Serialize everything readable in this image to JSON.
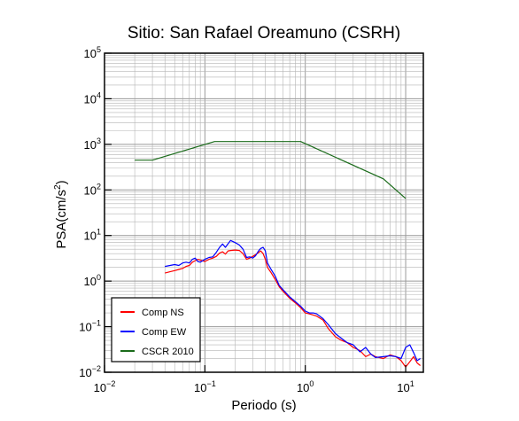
{
  "chart_data": {
    "type": "line",
    "title": "Sitio: San Rafael Oreamuno (CSRH)",
    "xlabel": "Periodo (s)",
    "ylabel": {
      "base": "PSA(cm/s",
      "sup": "2",
      "end": ")"
    },
    "x_scale": "log",
    "y_scale": "log",
    "xlim": [
      0.01,
      15
    ],
    "ylim": [
      0.01,
      100000
    ],
    "grid": true,
    "legend_position": "bottom-left",
    "x_ticks": [
      {
        "base": "10",
        "exp": "−2",
        "value": 0.01
      },
      {
        "base": "10",
        "exp": "−1",
        "value": 0.1
      },
      {
        "base": "10",
        "exp": "0",
        "value": 1
      },
      {
        "base": "10",
        "exp": "1",
        "value": 10
      }
    ],
    "y_ticks": [
      {
        "base": "10",
        "exp": "−2",
        "value": 0.01
      },
      {
        "base": "10",
        "exp": "−1",
        "value": 0.1
      },
      {
        "base": "10",
        "exp": "0",
        "value": 1
      },
      {
        "base": "10",
        "exp": "1",
        "value": 10
      },
      {
        "base": "10",
        "exp": "2",
        "value": 100
      },
      {
        "base": "10",
        "exp": "3",
        "value": 1000
      },
      {
        "base": "10",
        "exp": "4",
        "value": 10000
      },
      {
        "base": "10",
        "exp": "5",
        "value": 100000
      }
    ],
    "series": [
      {
        "name": "Comp NS",
        "color": "#ff0000",
        "x": [
          0.04,
          0.045,
          0.05,
          0.055,
          0.06,
          0.065,
          0.07,
          0.075,
          0.08,
          0.085,
          0.09,
          0.1,
          0.11,
          0.12,
          0.13,
          0.14,
          0.15,
          0.16,
          0.17,
          0.18,
          0.2,
          0.22,
          0.24,
          0.26,
          0.28,
          0.3,
          0.32,
          0.34,
          0.36,
          0.38,
          0.4,
          0.42,
          0.45,
          0.5,
          0.55,
          0.6,
          0.7,
          0.8,
          0.9,
          1.0,
          1.1,
          1.2,
          1.3,
          1.5,
          1.7,
          2.0,
          2.3,
          2.6,
          3.0,
          3.5,
          4.0,
          4.5,
          5.0,
          6.0,
          7.0,
          8.0,
          9.0,
          10.0,
          11.0,
          12.0,
          13.0,
          14.0
        ],
        "y": [
          1.5,
          1.6,
          1.7,
          1.8,
          1.9,
          2.1,
          2.2,
          2.6,
          2.8,
          3.0,
          2.9,
          2.7,
          3.0,
          3.2,
          3.5,
          4.1,
          4.4,
          3.9,
          4.6,
          4.7,
          4.8,
          4.7,
          4.0,
          3.0,
          3.2,
          3.5,
          3.8,
          4.2,
          4.6,
          4.0,
          3.0,
          2.0,
          1.6,
          1.1,
          0.75,
          0.6,
          0.42,
          0.33,
          0.26,
          0.2,
          0.19,
          0.18,
          0.17,
          0.14,
          0.09,
          0.06,
          0.05,
          0.045,
          0.035,
          0.03,
          0.022,
          0.025,
          0.022,
          0.02,
          0.024,
          0.022,
          0.018,
          0.013,
          0.017,
          0.022,
          0.016,
          0.014
        ]
      },
      {
        "name": "Comp EW",
        "color": "#0000ff",
        "x": [
          0.04,
          0.045,
          0.05,
          0.055,
          0.06,
          0.065,
          0.07,
          0.075,
          0.08,
          0.085,
          0.09,
          0.1,
          0.11,
          0.12,
          0.13,
          0.14,
          0.15,
          0.16,
          0.17,
          0.18,
          0.2,
          0.22,
          0.24,
          0.26,
          0.28,
          0.3,
          0.32,
          0.34,
          0.36,
          0.38,
          0.4,
          0.42,
          0.45,
          0.5,
          0.55,
          0.6,
          0.7,
          0.8,
          0.9,
          1.0,
          1.1,
          1.2,
          1.3,
          1.5,
          1.7,
          2.0,
          2.3,
          2.6,
          3.0,
          3.5,
          4.0,
          4.5,
          5.0,
          6.0,
          7.0,
          8.0,
          9.0,
          10.0,
          11.0,
          12.0,
          13.0,
          14.0
        ],
        "y": [
          2.1,
          2.2,
          2.3,
          2.2,
          2.5,
          2.6,
          2.5,
          3.0,
          3.2,
          2.7,
          2.6,
          3.0,
          3.3,
          3.4,
          4.3,
          5.5,
          6.5,
          5.5,
          6.6,
          7.8,
          7.0,
          6.2,
          5.0,
          3.3,
          3.4,
          3.2,
          3.6,
          4.5,
          5.2,
          5.5,
          4.6,
          2.5,
          1.9,
          1.3,
          0.8,
          0.65,
          0.45,
          0.35,
          0.28,
          0.22,
          0.2,
          0.2,
          0.19,
          0.15,
          0.11,
          0.07,
          0.055,
          0.045,
          0.04,
          0.028,
          0.035,
          0.025,
          0.021,
          0.022,
          0.023,
          0.022,
          0.02,
          0.035,
          0.04,
          0.027,
          0.018,
          0.02
        ]
      },
      {
        "name": "CSCR 2010",
        "color": "#1a6b1a",
        "x": [
          0.02,
          0.03,
          0.125,
          0.9,
          6.0,
          10.0
        ],
        "y": [
          450,
          450,
          1150,
          1150,
          175,
          65
        ]
      }
    ]
  }
}
